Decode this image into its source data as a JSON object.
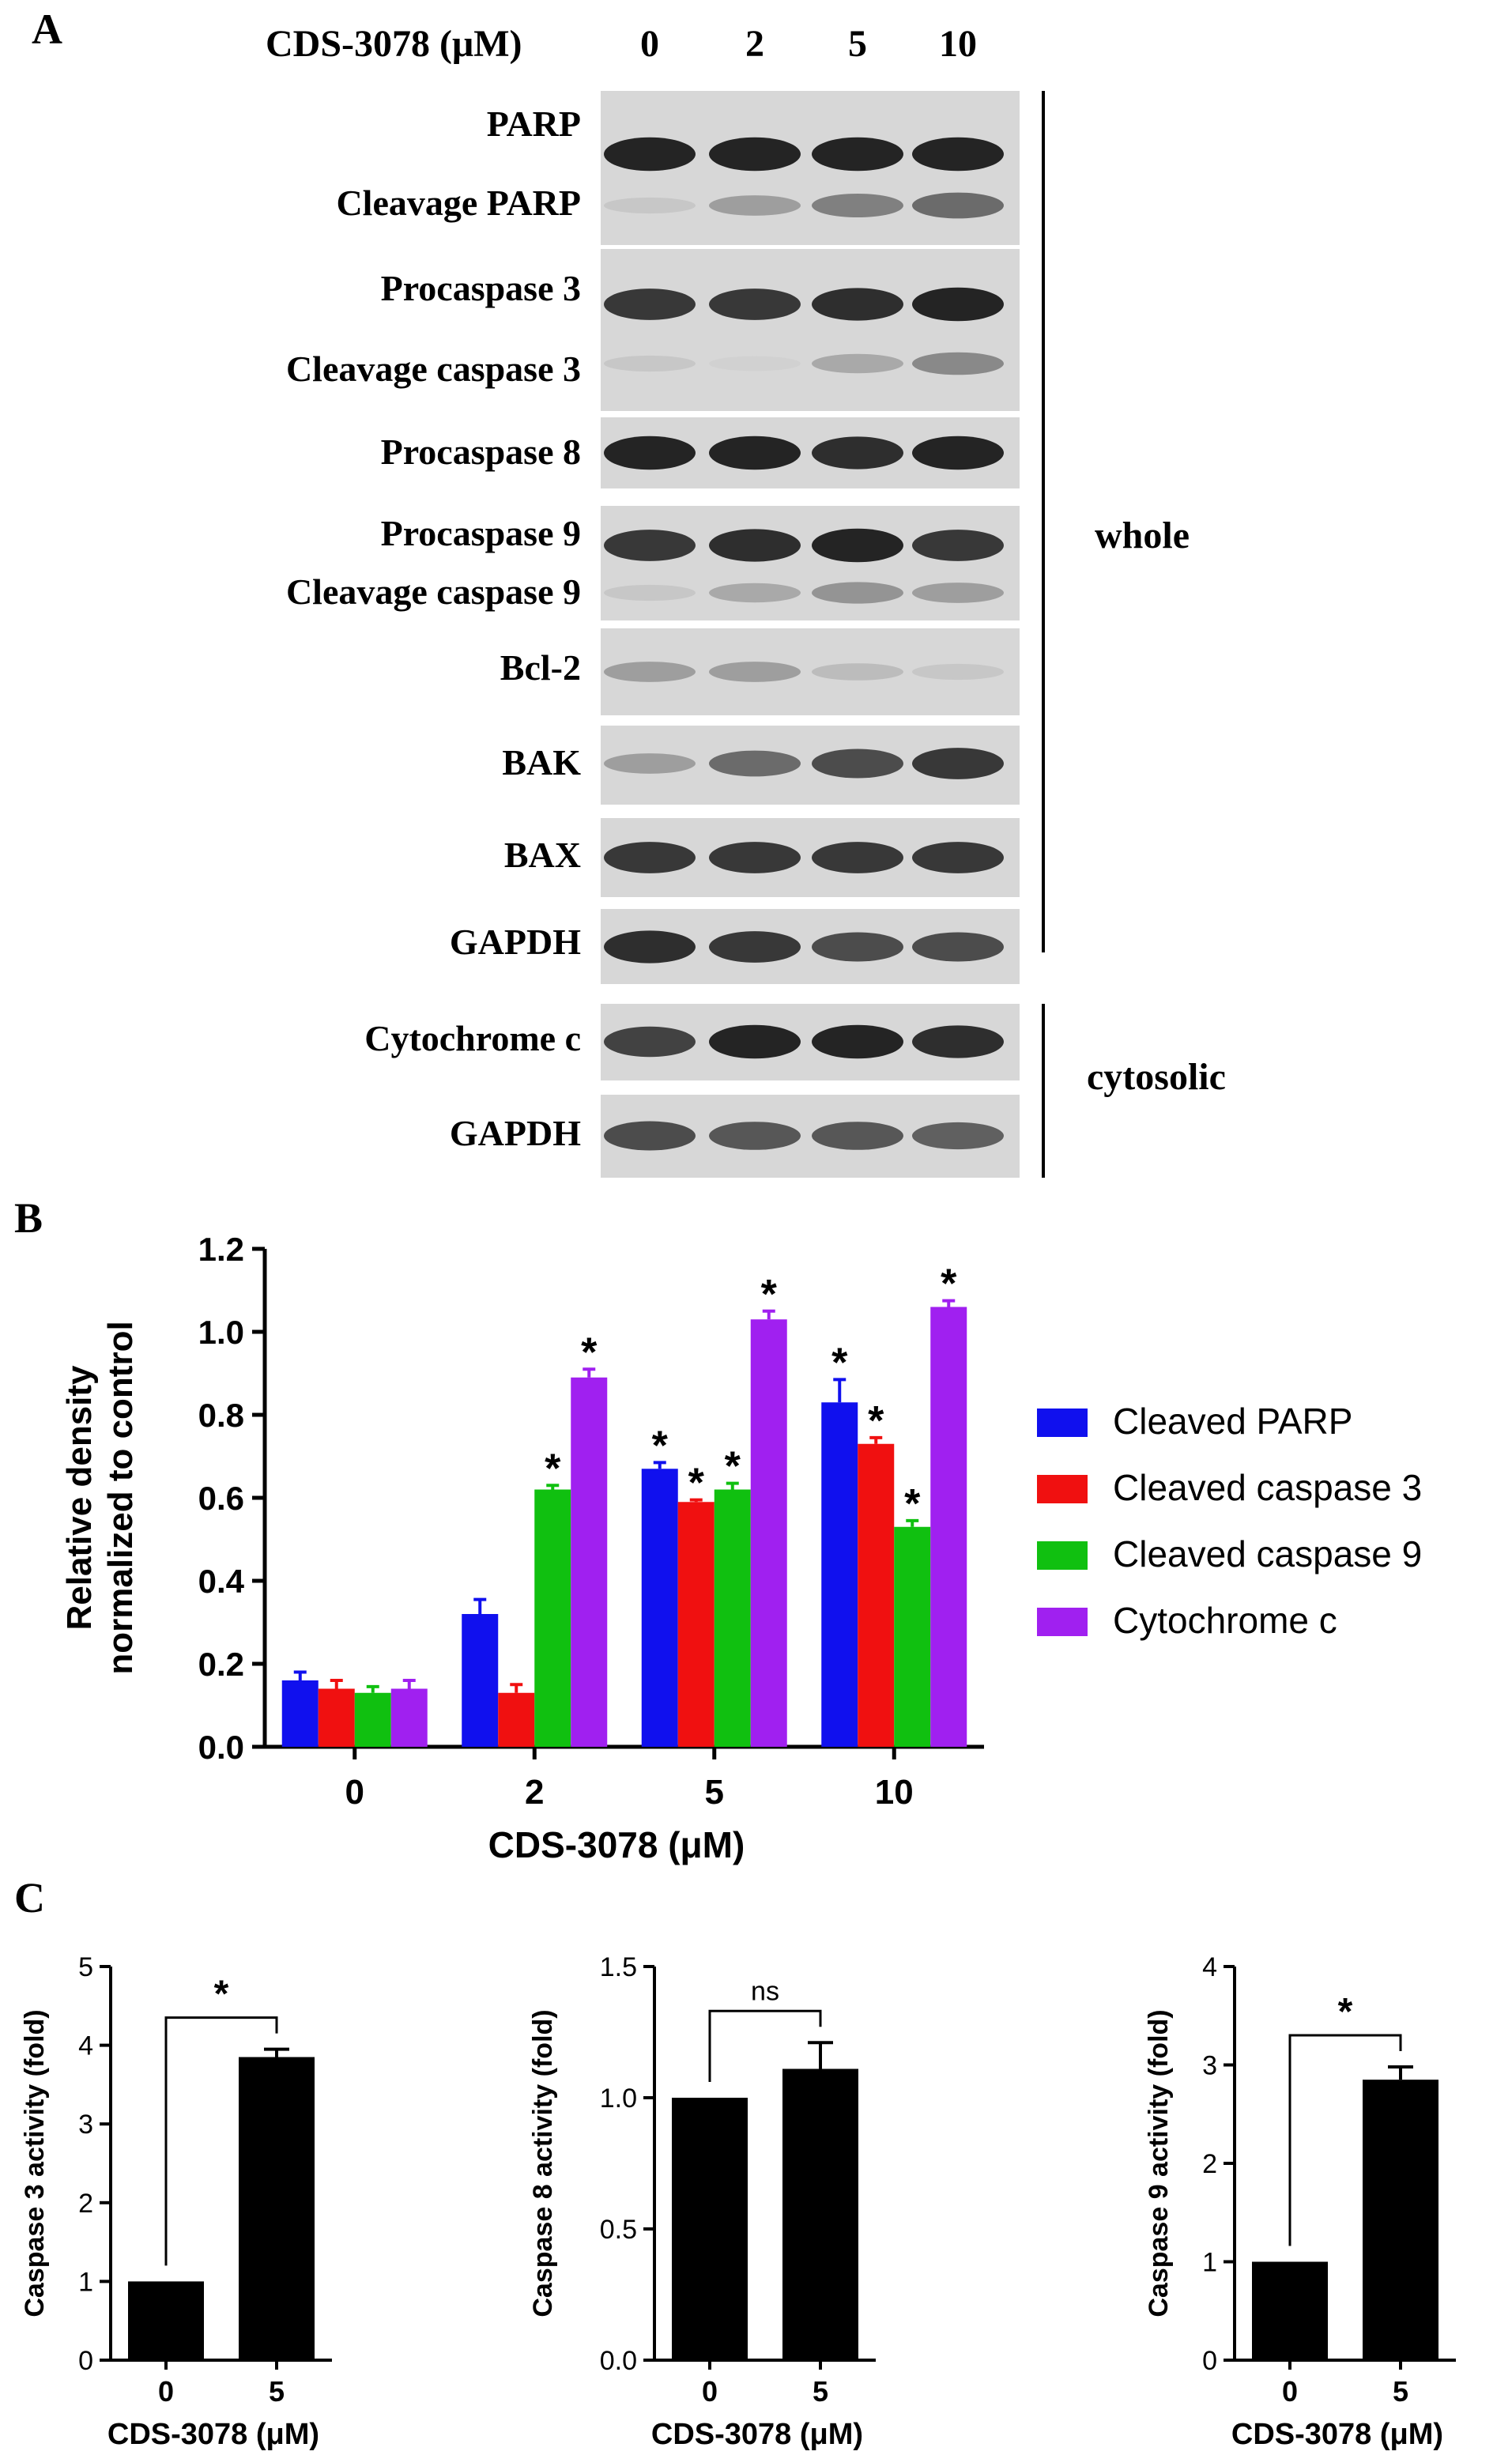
{
  "panel_a": {
    "letter": "A",
    "treatment_label": "CDS-3078 (μM)",
    "lanes": [
      "0",
      "2",
      "5",
      "10"
    ],
    "blots": [
      {
        "labels": [
          "PARP",
          "Cleavage PARP"
        ],
        "bands": [
          [
            0.95,
            0.95,
            0.95,
            0.95
          ],
          [
            0.15,
            0.35,
            0.5,
            0.6
          ]
        ]
      },
      {
        "labels": [
          "Procaspase 3",
          "Cleavage caspase 3"
        ],
        "bands": [
          [
            0.85,
            0.85,
            0.9,
            0.95
          ],
          [
            0.15,
            0.1,
            0.3,
            0.45
          ]
        ]
      },
      {
        "labels": [
          "Procaspase 8"
        ],
        "bands": [
          [
            0.95,
            0.95,
            0.9,
            0.95
          ]
        ]
      },
      {
        "labels": [
          "Procaspase 9",
          "Cleavage caspase 9"
        ],
        "bands": [
          [
            0.85,
            0.9,
            0.95,
            0.85
          ],
          [
            0.15,
            0.3,
            0.4,
            0.35
          ]
        ]
      },
      {
        "labels": [
          "Bcl-2"
        ],
        "bands": [
          [
            0.35,
            0.35,
            0.2,
            0.15
          ]
        ]
      },
      {
        "labels": [
          "BAK"
        ],
        "bands": [
          [
            0.35,
            0.6,
            0.75,
            0.85
          ]
        ]
      },
      {
        "labels": [
          "BAX"
        ],
        "bands": [
          [
            0.85,
            0.85,
            0.85,
            0.85
          ]
        ]
      },
      {
        "labels": [
          "GAPDH"
        ],
        "bands": [
          [
            0.9,
            0.85,
            0.75,
            0.75
          ]
        ]
      },
      {
        "labels": [
          "Cytochrome c"
        ],
        "bands": [
          [
            0.8,
            0.95,
            0.95,
            0.9
          ]
        ]
      },
      {
        "labels": [
          "GAPDH"
        ],
        "bands": [
          [
            0.75,
            0.7,
            0.7,
            0.65
          ]
        ]
      }
    ],
    "group_whole": "whole",
    "group_cytosolic": "cytosolic"
  },
  "panel_b": {
    "letter": "B",
    "chart_data": {
      "type": "bar",
      "categories": [
        "0",
        "2",
        "5",
        "10"
      ],
      "xlabel": "CDS-3078 (μM)",
      "ylabel": [
        "Relative density",
        "normalized to control"
      ],
      "ylim": [
        0,
        1.2
      ],
      "yticks": [
        "0.0",
        "0.2",
        "0.4",
        "0.6",
        "0.8",
        "1.0",
        "1.2"
      ],
      "legend_position": "right",
      "series": [
        {
          "name": "Cleaved PARP",
          "color": "#1010ee",
          "values": [
            0.16,
            0.32,
            0.67,
            0.83
          ],
          "errors": [
            0.02,
            0.035,
            0.015,
            0.055
          ],
          "sig": [
            false,
            false,
            true,
            true
          ]
        },
        {
          "name": "Cleaved caspase 3",
          "color": "#f01010",
          "values": [
            0.14,
            0.13,
            0.59,
            0.73
          ],
          "errors": [
            0.02,
            0.02,
            0.005,
            0.015
          ],
          "sig": [
            false,
            false,
            true,
            true
          ]
        },
        {
          "name": "Cleaved caspase 9",
          "color": "#10c010",
          "values": [
            0.13,
            0.62,
            0.62,
            0.53
          ],
          "errors": [
            0.015,
            0.01,
            0.015,
            0.015
          ],
          "sig": [
            false,
            true,
            true,
            true
          ]
        },
        {
          "name": "Cytochrome c",
          "color": "#a020f0",
          "values": [
            0.14,
            0.89,
            1.03,
            1.06
          ],
          "errors": [
            0.02,
            0.02,
            0.02,
            0.015
          ],
          "sig": [
            false,
            true,
            true,
            true
          ]
        }
      ],
      "sig_marker": "*"
    }
  },
  "panel_c": {
    "letter": "C",
    "chart_data": [
      {
        "type": "bar",
        "categories": [
          "0",
          "5"
        ],
        "values": [
          1.0,
          3.85
        ],
        "errors": [
          0,
          0.1
        ],
        "ylabel": "Caspase 3 activity (fold)",
        "xlabel": "CDS-3078 (μM)",
        "ylim": [
          0,
          5
        ],
        "yticks": [
          "0",
          "1",
          "2",
          "3",
          "4",
          "5"
        ],
        "bracket": "*"
      },
      {
        "type": "bar",
        "categories": [
          "0",
          "5"
        ],
        "values": [
          1.0,
          1.11
        ],
        "errors": [
          0,
          0.1
        ],
        "ylabel": "Caspase 8 activity (fold)",
        "xlabel": "CDS-3078 (μM)",
        "ylim": [
          0,
          1.5
        ],
        "yticks": [
          "0.0",
          "0.5",
          "1.0",
          "1.5"
        ],
        "bracket": "ns"
      },
      {
        "type": "bar",
        "categories": [
          "0",
          "5"
        ],
        "values": [
          1.0,
          2.85
        ],
        "errors": [
          0,
          0.13
        ],
        "ylabel": "Caspase 9 activity (fold)",
        "xlabel": "CDS-3078 (μM)",
        "ylim": [
          0,
          4
        ],
        "yticks": [
          "0",
          "1",
          "2",
          "3",
          "4"
        ],
        "bracket": "*"
      }
    ]
  }
}
